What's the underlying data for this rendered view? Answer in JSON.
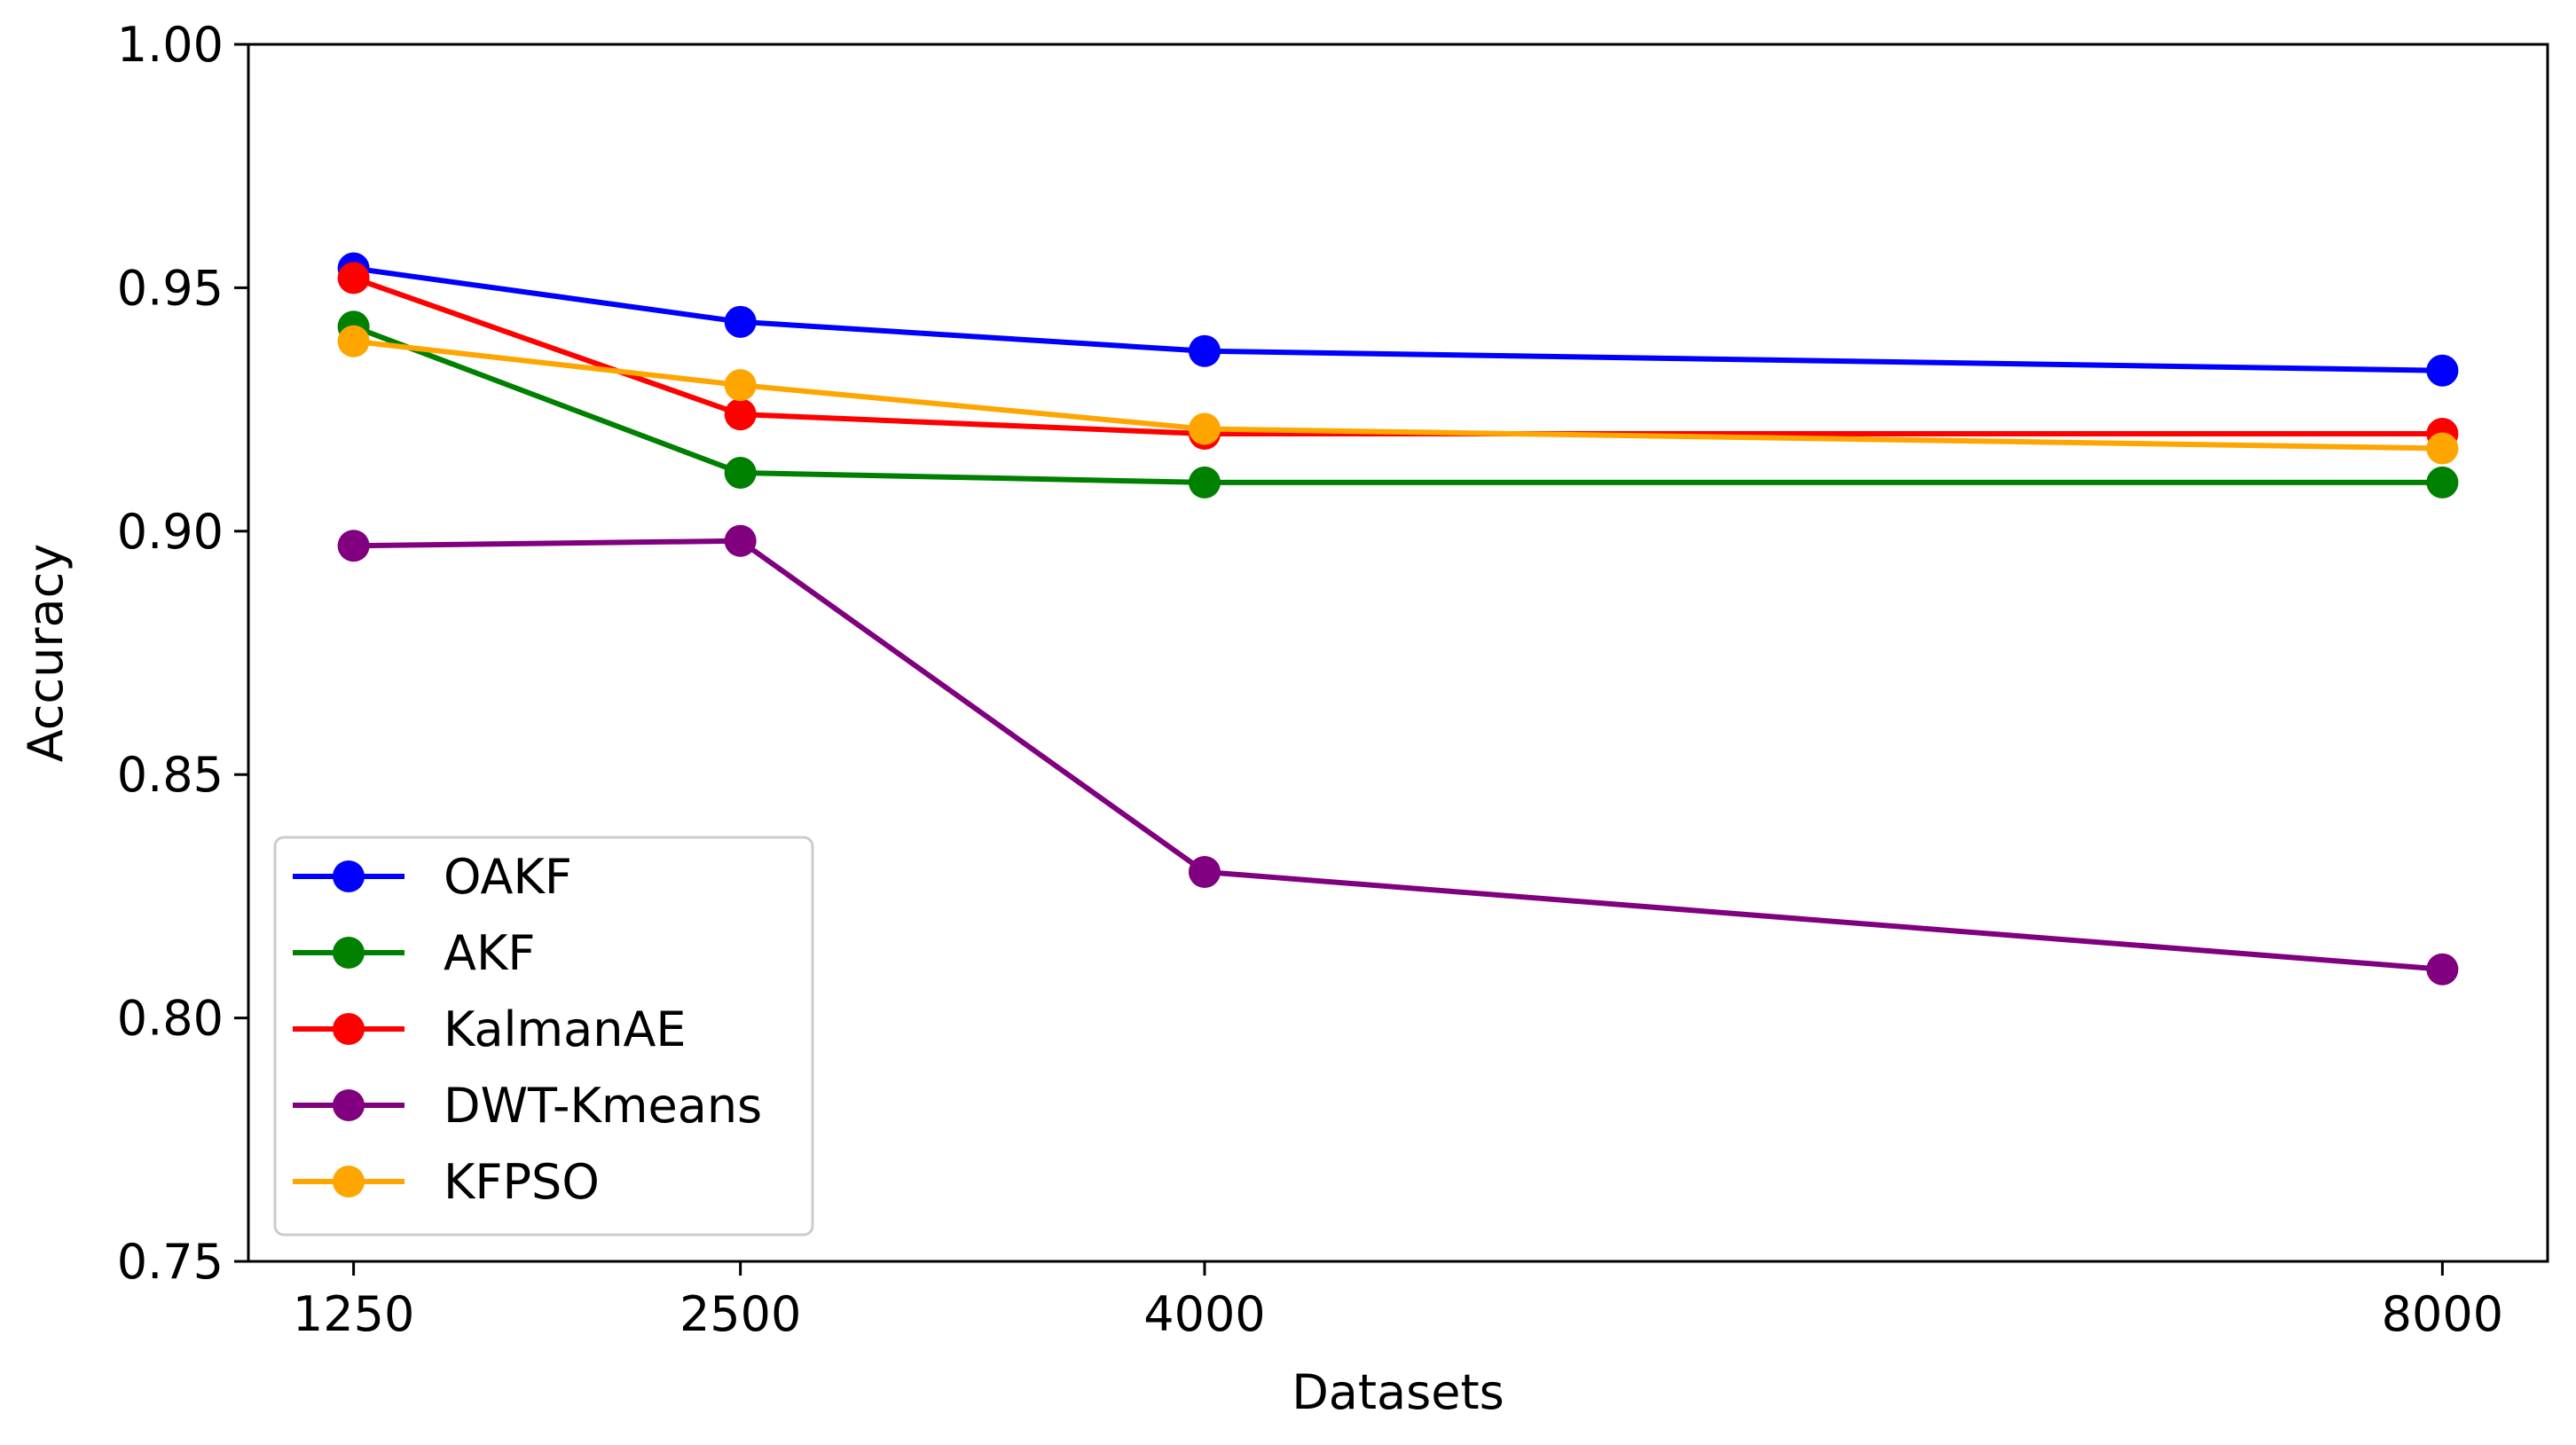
{
  "chart_data": {
    "type": "line",
    "title": "",
    "xlabel": "Datasets",
    "ylabel": "Accuracy",
    "x": [
      1250,
      2500,
      4000,
      8000
    ],
    "x_tick_labels": [
      "1250",
      "2500",
      "4000",
      "8000"
    ],
    "xlim": [
      910,
      8340
    ],
    "ylim": [
      0.75,
      1.0
    ],
    "y_ticks": [
      0.75,
      0.8,
      0.85,
      0.9,
      0.95,
      1.0
    ],
    "y_tick_labels": [
      "0.75",
      "0.80",
      "0.85",
      "0.90",
      "0.95",
      "1.00"
    ],
    "grid": false,
    "legend_position": "lower-left",
    "series": [
      {
        "name": "OAKF",
        "color": "#0000ff",
        "values": [
          0.954,
          0.943,
          0.937,
          0.933
        ]
      },
      {
        "name": "AKF",
        "color": "#008000",
        "values": [
          0.942,
          0.912,
          0.91,
          0.91
        ]
      },
      {
        "name": "KalmanAE",
        "color": "#ff0000",
        "values": [
          0.952,
          0.924,
          0.92,
          0.92
        ]
      },
      {
        "name": "DWT-Kmeans",
        "color": "#800080",
        "values": [
          0.897,
          0.898,
          0.83,
          0.81
        ]
      },
      {
        "name": "KFPSO",
        "color": "#ffa500",
        "values": [
          0.939,
          0.93,
          0.921,
          0.917
        ]
      }
    ]
  }
}
